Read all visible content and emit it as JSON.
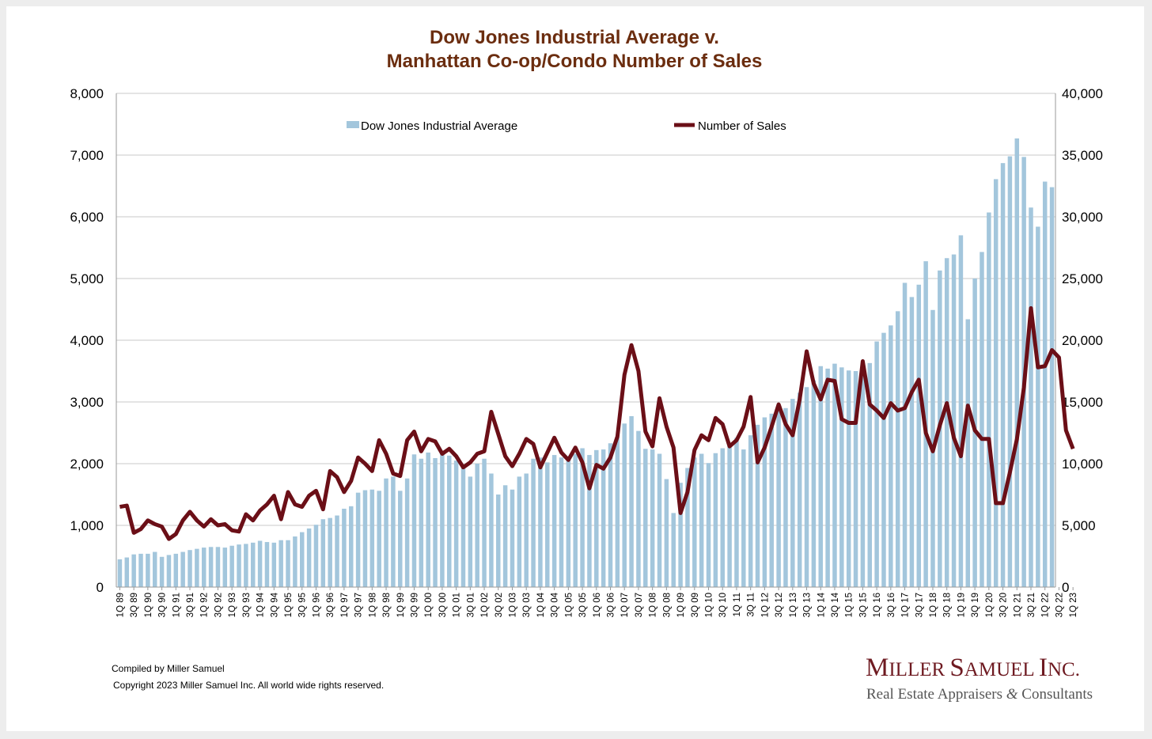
{
  "chart_data": {
    "type": "bar+line",
    "title": [
      "Dow Jones Industrial Average v.",
      "Manhattan Co-op/Condo Number of Sales"
    ],
    "legend": [
      "Dow Jones Industrial Average",
      "Number of Sales"
    ],
    "y_left": {
      "min": 0,
      "max": 8000,
      "step": 1000,
      "ticks": [
        "0",
        "1,000",
        "2,000",
        "3,000",
        "4,000",
        "5,000",
        "6,000",
        "7,000",
        "8,000"
      ]
    },
    "y_right": {
      "min": 0,
      "max": 40000,
      "step": 5000,
      "ticks": [
        "0",
        "5,000",
        "10,000",
        "15,000",
        "20,000",
        "25,000",
        "30,000",
        "35,000",
        "40,000"
      ]
    },
    "x_labels": [
      "1Q 89",
      "3Q 89",
      "1Q 90",
      "3Q 90",
      "1Q 91",
      "3Q 91",
      "1Q 92",
      "3Q 92",
      "1Q 93",
      "3Q 93",
      "1Q 94",
      "3Q 94",
      "1Q 95",
      "3Q 95",
      "1Q 96",
      "3Q 96",
      "1Q 97",
      "3Q 97",
      "1Q 98",
      "3Q 98",
      "1Q 99",
      "3Q 99",
      "1Q 00",
      "3Q 00",
      "1Q 01",
      "3Q 01",
      "1Q 02",
      "3Q 02",
      "1Q 03",
      "3Q 03",
      "1Q 04",
      "3Q 04",
      "1Q 05",
      "3Q 05",
      "1Q 06",
      "3Q 06",
      "1Q 07",
      "3Q 07",
      "1Q 08",
      "3Q 08",
      "1Q 09",
      "3Q 09",
      "1Q 10",
      "3Q 10",
      "1Q 11",
      "3Q 11",
      "1Q 12",
      "3Q 12",
      "1Q 13",
      "3Q 13",
      "1Q 14",
      "3Q 14",
      "1Q 15",
      "3Q 15",
      "1Q 16",
      "3Q 16",
      "1Q 17",
      "3Q 17",
      "1Q 18",
      "3Q 18",
      "1Q 19",
      "3Q 19",
      "1Q 20",
      "3Q 20",
      "1Q 21",
      "3Q 21",
      "1Q 22",
      "3Q 22",
      "1Q 23"
    ],
    "series": [
      {
        "name": "Dow Jones Industrial Average",
        "kind": "bar",
        "axis": "left",
        "color": "#a3c6dc",
        "values": [
          450,
          480,
          530,
          540,
          540,
          570,
          490,
          520,
          540,
          570,
          600,
          620,
          640,
          650,
          650,
          640,
          670,
          690,
          700,
          720,
          750,
          730,
          720,
          760,
          760,
          820,
          890,
          950,
          1010,
          1100,
          1120,
          1160,
          1270,
          1310,
          1530,
          1570,
          1580,
          1560,
          1760,
          1790,
          1560,
          1760,
          2150,
          2080,
          2180,
          2090,
          2190,
          2130,
          2050,
          1940,
          1790,
          2000,
          2080,
          1840,
          1500,
          1650,
          1580,
          1790,
          1840,
          2080,
          2100,
          2020,
          2140,
          2100,
          2120,
          2160,
          2250,
          2140,
          2220,
          2230,
          2330,
          2430,
          2650,
          2770,
          2530,
          2240,
          2230,
          2160,
          1750,
          1200,
          1690,
          1930,
          2100,
          2160,
          2010,
          2170,
          2250,
          2330,
          2420,
          2230,
          2460,
          2630,
          2750,
          2810,
          2880,
          2900,
          3050,
          3150,
          3240,
          3350,
          3580,
          3540,
          3620,
          3560,
          3510,
          3500,
          3490,
          3630,
          3980,
          4120,
          4240,
          4470,
          4930,
          4700,
          4900,
          5280,
          4490,
          5130,
          5330,
          5390,
          5700,
          4340,
          5000,
          5430,
          6070,
          6610,
          6870,
          6980,
          7270,
          6970,
          6150,
          5840,
          6570,
          6480
        ]
      },
      {
        "name": "Number of Sales",
        "kind": "line",
        "axis": "right",
        "color": "#6b0f17",
        "values": [
          6500,
          6600,
          4400,
          4700,
          5400,
          5100,
          4900,
          3900,
          4300,
          5400,
          6100,
          5400,
          4900,
          5500,
          5000,
          5100,
          4600,
          4500,
          5900,
          5400,
          6200,
          6700,
          7400,
          5500,
          7700,
          6700,
          6500,
          7400,
          7800,
          6300,
          9400,
          8900,
          7700,
          8600,
          10500,
          10000,
          9400,
          11900,
          10800,
          9200,
          9000,
          11900,
          12600,
          11000,
          12000,
          11800,
          10800,
          11200,
          10600,
          9700,
          10100,
          10800,
          11000,
          14200,
          12400,
          10600,
          9800,
          10800,
          12000,
          11600,
          9700,
          10900,
          12100,
          10900,
          10300,
          11300,
          10100,
          8000,
          9900,
          9600,
          10500,
          12200,
          17200,
          19600,
          17500,
          12600,
          11400,
          15300,
          13000,
          11300,
          6000,
          7700,
          11100,
          12300,
          11900,
          13700,
          13200,
          11400,
          11900,
          13000,
          15400,
          10100,
          11300,
          13000,
          14800,
          13200,
          12300,
          15200,
          19100,
          16500,
          15200,
          16800,
          16700,
          13600,
          13300,
          13300,
          18300,
          14800,
          14300,
          13700,
          14900,
          14300,
          14500,
          15800,
          16800,
          12500,
          11000,
          13100,
          14900,
          12100,
          10600,
          14700,
          12700,
          12000,
          12000,
          6800,
          6800,
          9300,
          12000,
          16200,
          22600,
          17800,
          17900,
          19200,
          18600,
          12700,
          11200
        ]
      }
    ]
  },
  "footer": {
    "compiled": "Compiled by Miller Samuel",
    "copyright": "Copyright 2023 Miller Samuel Inc.  All world wide rights reserved."
  },
  "brand": {
    "name": "Miller Samuel Inc.",
    "tagline_part1": "Real Estate Appraisers ",
    "tagline_amp": "&",
    "tagline_part2": " Consultants",
    "color": "#6e1a21"
  }
}
